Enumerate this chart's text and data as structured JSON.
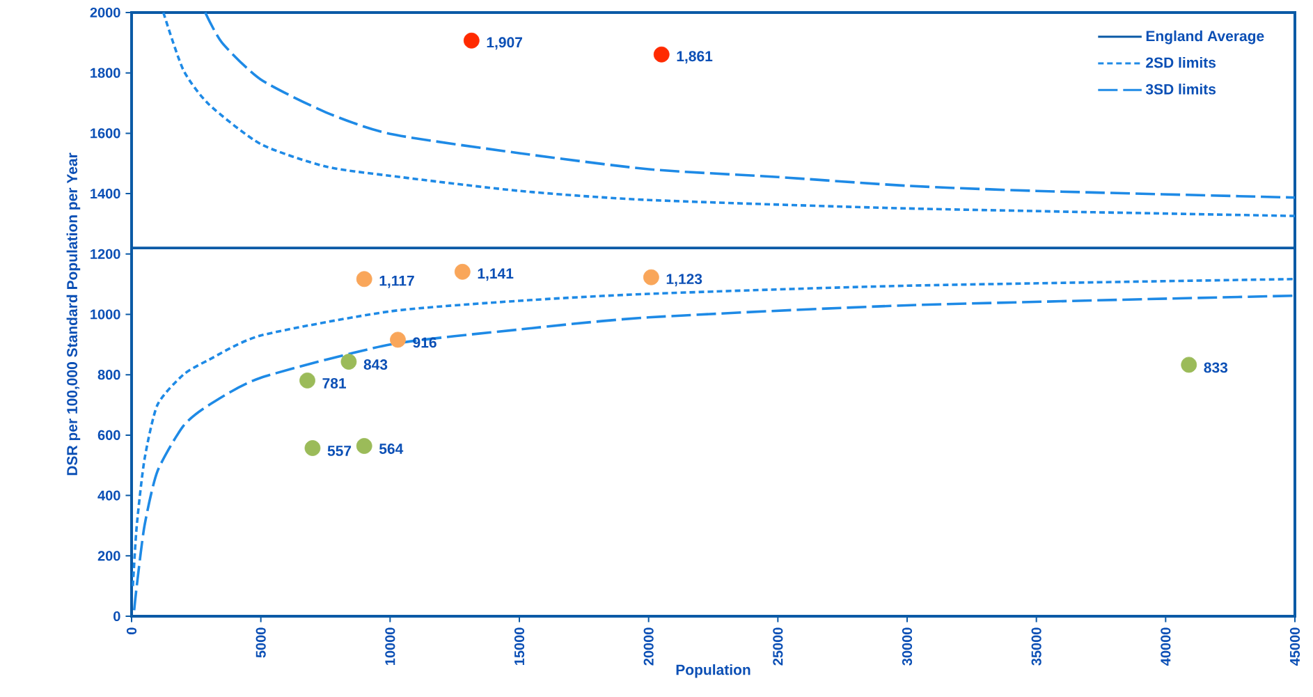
{
  "chart_data": {
    "type": "scatter",
    "xlabel": "Population",
    "ylabel": "DSR per 100,000 Standard Population per Year",
    "xlim": [
      0,
      45000
    ],
    "ylim": [
      0,
      2000
    ],
    "xticks": [
      0,
      5000,
      10000,
      15000,
      20000,
      25000,
      30000,
      35000,
      40000,
      45000
    ],
    "yticks": [
      0,
      200,
      400,
      600,
      800,
      1000,
      1200,
      1400,
      1600,
      1800,
      2000
    ],
    "legend": "top right",
    "series": [
      {
        "name": "England Average",
        "type": "line",
        "color": "#0b5aa6",
        "line_style": "solid",
        "marker": "none",
        "x": [
          0,
          45000
        ],
        "values": [
          1220,
          1220
        ]
      },
      {
        "name": "2SD limits",
        "type": "line",
        "color": "#1e8ae6",
        "line_style": "dotted",
        "marker": "none",
        "x": [
          1230,
          2000,
          3000,
          5000,
          7500,
          10000,
          15000,
          20000,
          30000,
          45000
        ],
        "values": [
          2000,
          1810,
          1695,
          1564,
          1490,
          1459,
          1409,
          1379,
          1351,
          1326
        ]
      },
      {
        "type": "line",
        "color": "#1e8ae6",
        "line_style": "dotted",
        "marker": "none",
        "x": [
          50,
          200,
          500,
          1000,
          2000,
          3000,
          5000,
          10000,
          15000,
          20000,
          30000,
          45000
        ],
        "values": [
          100,
          300,
          520,
          700,
          800,
          850,
          930,
          1010,
          1045,
          1068,
          1095,
          1117
        ]
      },
      {
        "name": "3SD limits",
        "type": "line",
        "color": "#1e8ae6",
        "line_style": "dashed",
        "marker": "none",
        "x": [
          2850,
          3500,
          5000,
          7500,
          10000,
          15000,
          20000,
          25000,
          30000,
          35000,
          45000
        ],
        "values": [
          2000,
          1900,
          1778,
          1670,
          1598,
          1534,
          1481,
          1455,
          1426,
          1409,
          1387
        ]
      },
      {
        "type": "line",
        "color": "#1e8ae6",
        "line_style": "dashed",
        "marker": "none",
        "x": [
          100,
          200,
          500,
          1000,
          2000,
          3000,
          5000,
          10000,
          15000,
          20000,
          30000,
          45000
        ],
        "values": [
          20,
          100,
          300,
          480,
          630,
          700,
          790,
          900,
          950,
          990,
          1030,
          1062
        ]
      },
      {
        "marker": "circle",
        "x": [
          13150,
          20500,
          9000,
          12800,
          20100,
          10300,
          8400,
          6800,
          7000,
          9000,
          40900
        ],
        "values": [
          1907,
          1861,
          1117,
          1141,
          1123,
          916,
          843,
          781,
          557,
          564,
          833
        ],
        "colors": [
          "#ff2a00",
          "#ff2a00",
          "#f9a65a",
          "#f9a65a",
          "#f9a65a",
          "#f9a65a",
          "#9bbb59",
          "#9bbb59",
          "#9bbb59",
          "#9bbb59",
          "#9bbb59"
        ],
        "value_labels": [
          "1,907",
          "1,861",
          "1,117",
          "1,141",
          "1,123",
          "916",
          "843",
          "781",
          "557",
          "564",
          "833"
        ]
      }
    ]
  }
}
